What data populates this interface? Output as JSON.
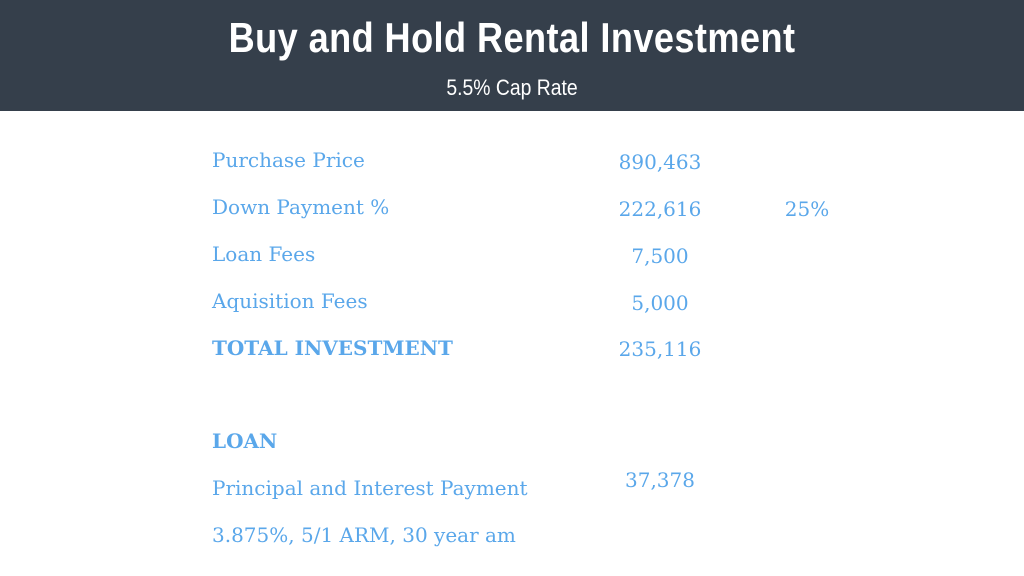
{
  "header": {
    "title": "Buy and Hold Rental Investment",
    "subtitle": "5.5% Cap Rate"
  },
  "investment": {
    "purchase_price": {
      "label": "Purchase Price",
      "value": "890,463"
    },
    "down_payment": {
      "label": "Down Payment %",
      "value": "222,616",
      "percent": "25%"
    },
    "loan_fees": {
      "label": "Loan Fees",
      "value": "7,500"
    },
    "acquisition_fees": {
      "label": "Aquisition Fees",
      "value": "5,000"
    },
    "total": {
      "label": "TOTAL INVESTMENT",
      "value": "235,116"
    }
  },
  "loan": {
    "heading": "LOAN",
    "payment_label": "Principal and Interest Payment",
    "payment_value": "37,378",
    "terms": "3.875%, 5/1 ARM, 30 year am"
  },
  "colors": {
    "header_bg": "#353f4b",
    "accent_blue": "#5aa7ea",
    "header_text": "#ffffff"
  }
}
